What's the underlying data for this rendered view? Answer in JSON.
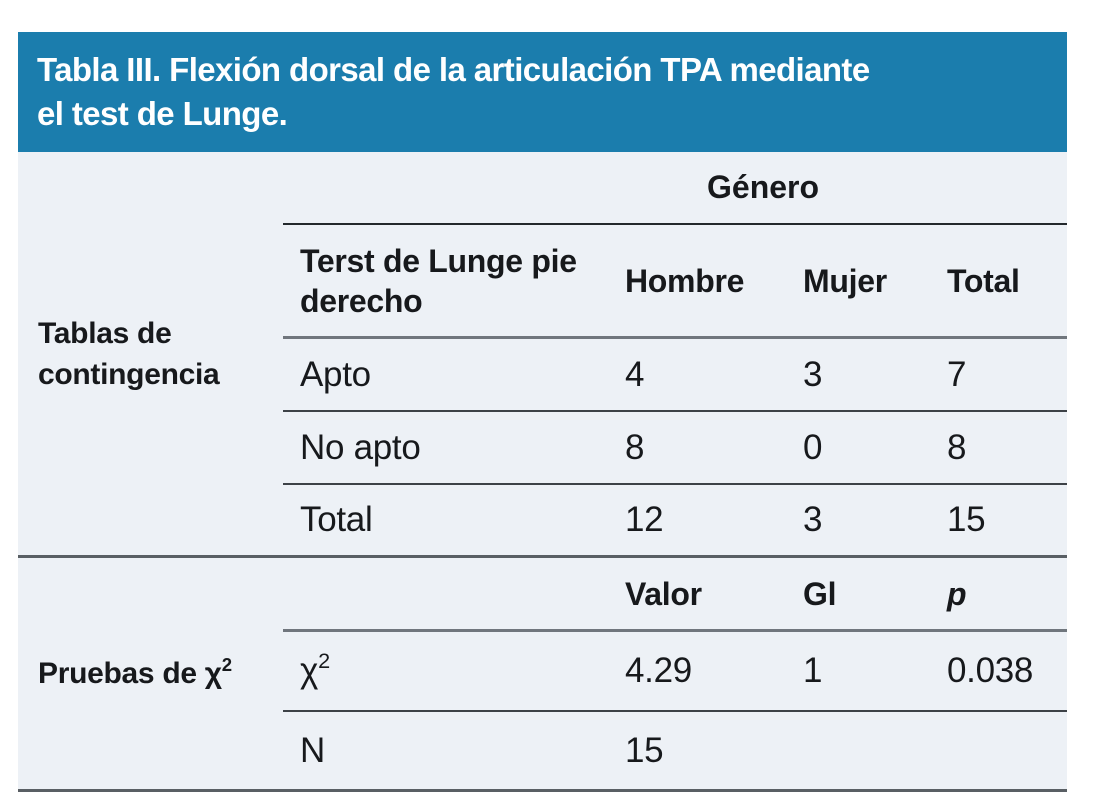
{
  "banner": {
    "title_line1": "Tabla III. Flexión dorsal de la articulación TPA mediante",
    "title_line2": "el test de Lunge."
  },
  "colors": {
    "banner_blue": "#1b7dad",
    "table_background": "#edf1f6",
    "text": "#17191c",
    "title_text": "#ffffff"
  },
  "table": {
    "section1": {
      "label": "Tablas de contingencia",
      "group_header": "Género",
      "row_header": "Terst de Lunge pie derecho",
      "columns": [
        "Hombre",
        "Mujer",
        "Total"
      ],
      "rows": [
        {
          "name": "Apto",
          "hombre": "4",
          "mujer": "3",
          "total": "7"
        },
        {
          "name": "No apto",
          "hombre": "8",
          "mujer": "0",
          "total": "8"
        },
        {
          "name": "Total",
          "hombre": "12",
          "mujer": "3",
          "total": "15"
        }
      ]
    },
    "section2": {
      "label_prefix": "Pruebas de ",
      "label_symbol": "χ",
      "label_sup": "2",
      "columns": [
        "Valor",
        "Gl",
        "p"
      ],
      "chi_row": {
        "symbol": "χ",
        "sup": "2",
        "valor": "4.29",
        "gl": "1",
        "p": "0.038"
      },
      "n_row": {
        "name": "N",
        "valor": "15"
      }
    }
  }
}
